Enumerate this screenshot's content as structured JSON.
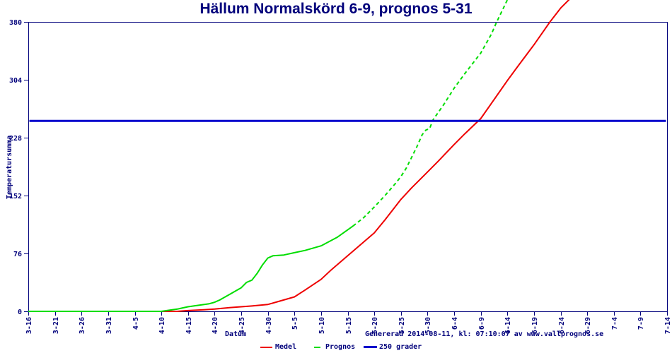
{
  "title": "Hällum Normalskörd 6-9, prognos 5-31",
  "footer": {
    "generated": "Genererad 2014-08-11, kl: 07:10:07 av www.vallprognos.se"
  },
  "colors": {
    "navy_text_axis": "#00007b",
    "medel_red": "#ee0000",
    "prognos_green": "#00dd00",
    "threshold_blue": "#0000cc",
    "background": "#ffffff"
  },
  "legend": {
    "medel": "Medel",
    "prognos": "Prognos",
    "threshold": "250 grader"
  },
  "chart_data": {
    "type": "line",
    "title": "Hällum Normalskörd 6-9, prognos 5-31",
    "xlabel": "Datum",
    "ylabel": "Temperatursumma",
    "x_axis_note": "x values are days after 3-16; ticks every 5 days",
    "xlim": [
      0,
      120
    ],
    "ylim": [
      0,
      380
    ],
    "grid": false,
    "legend_position": "bottom",
    "y_ticks": [
      0,
      76,
      152,
      228,
      304,
      380
    ],
    "x_tick_days": [
      0,
      5,
      10,
      15,
      20,
      25,
      30,
      35,
      40,
      45,
      50,
      55,
      60,
      65,
      70,
      75,
      80,
      85,
      90,
      95,
      100,
      105,
      110,
      115,
      120
    ],
    "x_tick_labels": [
      "3-16",
      "3-21",
      "3-26",
      "3-31",
      "4-5",
      "4-10",
      "4-15",
      "4-20",
      "4-25",
      "4-30",
      "5-5",
      "5-10",
      "5-15",
      "5-20",
      "5-25",
      "5-30",
      "6-4",
      "6-9",
      "6-14",
      "6-19",
      "6-24",
      "6-29",
      "7-4",
      "7-9",
      "7-14"
    ],
    "series": [
      {
        "name": "Medel",
        "color": "#ee0000",
        "width": 2,
        "segments": [
          {
            "style": "solid",
            "points": [
              [
                0,
                0
              ],
              [
                10,
                0
              ],
              [
                20,
                0
              ],
              [
                25,
                0
              ],
              [
                28,
                0
              ],
              [
                30,
                1
              ],
              [
                33,
                2
              ],
              [
                35,
                3
              ],
              [
                38,
                5
              ],
              [
                40,
                6
              ],
              [
                42,
                7
              ],
              [
                45,
                9
              ],
              [
                47,
                13
              ],
              [
                50,
                19
              ],
              [
                52,
                28
              ],
              [
                55,
                42
              ],
              [
                57,
                55
              ],
              [
                60,
                73
              ],
              [
                62,
                85
              ],
              [
                65,
                103
              ],
              [
                67,
                120
              ],
              [
                70,
                147
              ],
              [
                72,
                162
              ],
              [
                75,
                183
              ],
              [
                77,
                197
              ],
              [
                80,
                219
              ],
              [
                82,
                233
              ],
              [
                85,
                253
              ],
              [
                87,
                273
              ],
              [
                90,
                303
              ],
              [
                92,
                322
              ],
              [
                95,
                350
              ],
              [
                98,
                380
              ],
              [
                100,
                398
              ],
              [
                102,
                412
              ]
            ]
          }
        ]
      },
      {
        "name": "Prognos",
        "color": "#00dd00",
        "width": 2,
        "segments": [
          {
            "style": "solid",
            "points": [
              [
                0,
                0
              ],
              [
                10,
                0
              ],
              [
                20,
                0
              ],
              [
                25,
                0
              ],
              [
                26,
                1
              ],
              [
                28,
                3
              ],
              [
                30,
                6
              ],
              [
                32,
                8
              ],
              [
                34,
                10
              ],
              [
                35,
                12
              ],
              [
                36,
                15
              ],
              [
                37,
                19
              ],
              [
                38,
                23
              ],
              [
                39,
                27
              ],
              [
                40,
                31
              ],
              [
                41,
                38
              ],
              [
                42,
                41
              ],
              [
                43,
                50
              ],
              [
                44,
                61
              ],
              [
                45,
                70
              ],
              [
                46,
                73
              ],
              [
                48,
                74
              ],
              [
                50,
                77
              ],
              [
                52,
                80
              ],
              [
                55,
                86
              ],
              [
                58,
                97
              ],
              [
                60,
                107
              ],
              [
                61,
                112
              ]
            ]
          },
          {
            "style": "dashed",
            "points": [
              [
                61,
                112
              ],
              [
                63,
                123
              ],
              [
                65,
                137
              ],
              [
                67,
                152
              ],
              [
                69,
                168
              ],
              [
                70,
                177
              ],
              [
                71,
                188
              ],
              [
                72,
                202
              ],
              [
                73,
                216
              ],
              [
                74,
                232
              ],
              [
                74.7,
                238
              ],
              [
                75.4,
                240
              ],
              [
                76,
                251
              ],
              [
                77,
                261
              ],
              [
                78,
                271
              ],
              [
                80,
                293
              ],
              [
                82,
                312
              ],
              [
                85,
                339
              ],
              [
                87,
                364
              ],
              [
                88,
                380
              ],
              [
                90,
                409
              ]
            ]
          }
        ]
      },
      {
        "name": "250 grader",
        "color": "#0000cc",
        "width": 3,
        "segments": [
          {
            "style": "solid",
            "points": [
              [
                0.2,
                250
              ],
              [
                119.8,
                250
              ]
            ]
          }
        ]
      }
    ]
  }
}
